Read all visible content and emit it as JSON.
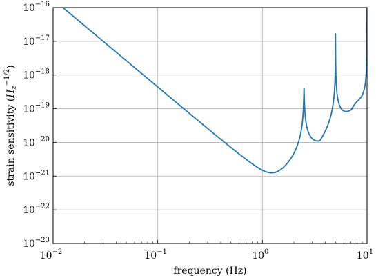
{
  "chart_data": {
    "type": "line",
    "title": "",
    "xlabel": "frequency (Hz)",
    "ylabel": "strain sensitivity (H_z^{-1/2})",
    "ylabel_parts": {
      "prefix": "strain sensitivity (",
      "var": "H",
      "sub": "z",
      "sup": "−1/2",
      "suffix": ")"
    },
    "x_scale": "log",
    "y_scale": "log",
    "xlim": [
      0.01,
      10
    ],
    "ylim": [
      1e-23,
      1e-16
    ],
    "grid": true,
    "x_ticks": [
      {
        "base": "10",
        "exp": "−2",
        "value": 0.01
      },
      {
        "base": "10",
        "exp": "−1",
        "value": 0.1
      },
      {
        "base": "10",
        "exp": "0",
        "value": 1
      },
      {
        "base": "10",
        "exp": "1",
        "value": 10
      }
    ],
    "y_ticks": [
      {
        "base": "10",
        "exp": "−23",
        "value": 1e-23
      },
      {
        "base": "10",
        "exp": "−22",
        "value": 1e-22
      },
      {
        "base": "10",
        "exp": "−21",
        "value": 1e-21
      },
      {
        "base": "10",
        "exp": "−20",
        "value": 1e-20
      },
      {
        "base": "10",
        "exp": "−19",
        "value": 1e-19
      },
      {
        "base": "10",
        "exp": "−18",
        "value": 1e-18
      },
      {
        "base": "10",
        "exp": "−17",
        "value": 1e-17
      },
      {
        "base": "10",
        "exp": "−16",
        "value": 1e-16
      }
    ],
    "series": [
      {
        "color": "#1f77b4",
        "model": {
          "low_freq_power_law": {
            "coefficient": 4.4e-19,
            "exponent": -2.6
          },
          "floor": 3.2e-22,
          "high_freq_power_law": {
            "coefficient": 6e-22,
            "exponent": 2.0
          },
          "resonances": [
            {
              "f0": 2.5,
              "peak": 2.8e-19
            },
            {
              "f0": 5.0,
              "peak": 1e-16
            },
            {
              "f0": 7.5,
              "peak": 5.5e-20
            },
            {
              "f0": 10.0,
              "peak": 1e-16
            }
          ]
        },
        "key_points": [
          {
            "x": 0.016,
            "y": 1e-16
          },
          {
            "x": 0.1,
            "y": 4.4e-19
          },
          {
            "x": 1.0,
            "y": 6.5e-22
          },
          {
            "x": 1.7,
            "y": 3.2e-22
          },
          {
            "x": 2.5,
            "y": 2.8e-19
          },
          {
            "x": 3.3,
            "y": 3.3e-22
          },
          {
            "x": 5.0,
            "y": 1e-16
          },
          {
            "x": 6.7,
            "y": 5e-22
          },
          {
            "x": 7.5,
            "y": 5.5e-20
          },
          {
            "x": 8.2,
            "y": 3.2e-22
          },
          {
            "x": 10.0,
            "y": 1e-16
          }
        ]
      }
    ]
  }
}
